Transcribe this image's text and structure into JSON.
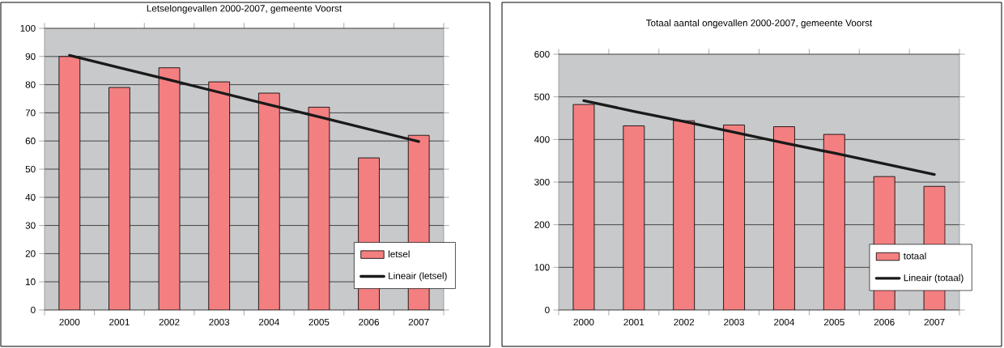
{
  "chart_data": [
    {
      "type": "bar",
      "title": "Letselongevallen 2000-2007, gemeente Voorst",
      "categories": [
        "2000",
        "2001",
        "2002",
        "2003",
        "2004",
        "2005",
        "2006",
        "2007"
      ],
      "series": [
        {
          "name": "letsel",
          "color": "#f47f80",
          "values": [
            90,
            79,
            86,
            81,
            77,
            72,
            54,
            62
          ]
        },
        {
          "name": "Lineair (letsel)",
          "type": "line",
          "color": "#1a1a1a",
          "values": [
            90.4,
            86.0,
            81.7,
            77.3,
            72.9,
            68.6,
            64.2,
            59.8
          ]
        }
      ],
      "ylim": [
        0,
        100
      ],
      "yticks": [
        0,
        10,
        20,
        30,
        40,
        50,
        60,
        70,
        80,
        90,
        100
      ],
      "grid": "y",
      "legend": "bottom right"
    },
    {
      "type": "bar",
      "title": "Totaal aantal ongevallen 2000-2007, gemeente Voorst",
      "categories": [
        "2000",
        "2001",
        "2002",
        "2003",
        "2004",
        "2005",
        "2006",
        "2007"
      ],
      "series": [
        {
          "name": "totaal",
          "color": "#f47f80",
          "values": [
            482,
            432,
            444,
            434,
            430,
            412,
            313,
            290
          ]
        },
        {
          "name": "Lineair (totaal)",
          "type": "line",
          "color": "#1a1a1a",
          "values": [
            491,
            466,
            442,
            417,
            392,
            368,
            343,
            318
          ]
        }
      ],
      "ylim": [
        0,
        600
      ],
      "yticks": [
        0,
        100,
        200,
        300,
        400,
        500,
        600
      ],
      "grid": "y",
      "legend": "bottom right"
    }
  ]
}
